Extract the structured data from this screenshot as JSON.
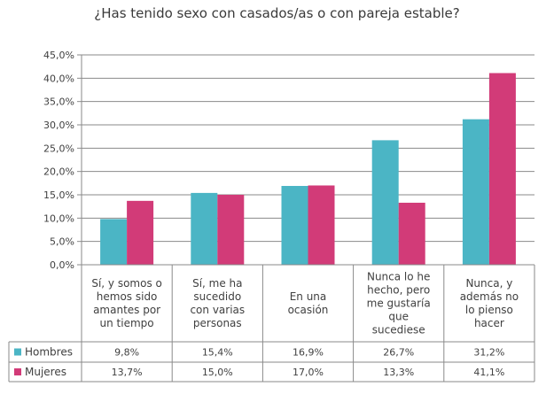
{
  "chart_data": {
    "type": "bar",
    "title": "¿Has tenido sexo con casados/as o con pareja estable?",
    "xlabel": "",
    "ylabel": "",
    "ylim": [
      0,
      45
    ],
    "yticks": [
      "0,0%",
      "5,0%",
      "10,0%",
      "15,0%",
      "20,0%",
      "25,0%",
      "30,0%",
      "35,0%",
      "40,0%",
      "45,0%"
    ],
    "grid": true,
    "legend": "table-left",
    "categories": [
      [
        "Sí, y somos o",
        "hemos sido",
        "amantes por",
        "un tiempo"
      ],
      [
        "Sí, me ha",
        "sucedido",
        "con varias",
        "personas"
      ],
      [
        "En una",
        "ocasión"
      ],
      [
        "Nunca lo he",
        "hecho, pero",
        "me gustaría",
        "que",
        "sucediese"
      ],
      [
        "Nunca, y",
        "además no",
        "lo pienso",
        "hacer"
      ]
    ],
    "series": [
      {
        "name": "Hombres",
        "color": "#4bb5c5",
        "values": [
          9.8,
          15.4,
          16.9,
          26.7,
          31.2
        ],
        "labels": [
          "9,8%",
          "15,4%",
          "16,9%",
          "26,7%",
          "31,2%"
        ]
      },
      {
        "name": "Mujeres",
        "color": "#d23b78",
        "values": [
          13.7,
          15.0,
          17.0,
          13.3,
          41.1
        ],
        "labels": [
          "13,7%",
          "15,0%",
          "17,0%",
          "13,3%",
          "41,1%"
        ]
      }
    ]
  }
}
